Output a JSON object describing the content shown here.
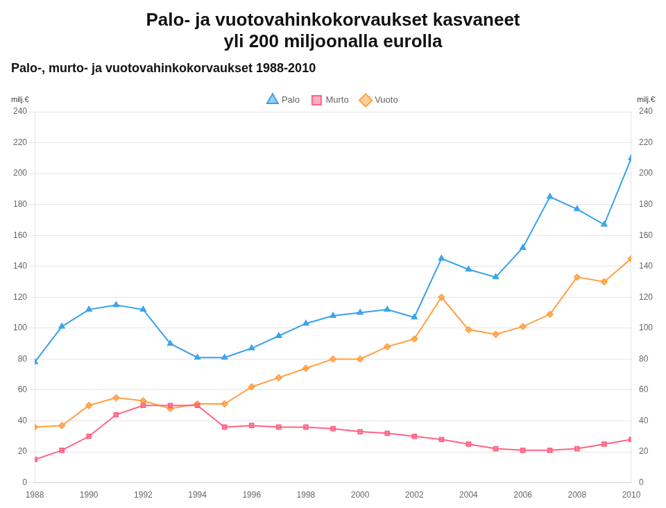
{
  "chart_data": {
    "type": "line",
    "title": [
      "Palo- ja vuotovahinkokorvaukset kasvaneet",
      "yli 200 miljoonalla eurolla"
    ],
    "subtitle": "Palo-, murto- ja vuotovahinkokorvaukset 1988-2010",
    "ylabel": "milj.€",
    "y2label": "milj.€",
    "x": [
      1988,
      1989,
      1990,
      1991,
      1992,
      1993,
      1994,
      1995,
      1996,
      1997,
      1998,
      1999,
      2000,
      2001,
      2002,
      2003,
      2004,
      2005,
      2006,
      2007,
      2008,
      2009,
      2010
    ],
    "series": [
      {
        "name": "Palo",
        "marker": "triangle",
        "values": [
          78,
          101,
          112,
          115,
          112,
          90,
          81,
          81,
          87,
          95,
          103,
          108,
          110,
          112,
          107,
          145,
          138,
          133,
          152,
          185,
          177,
          167,
          210
        ]
      },
      {
        "name": "Murto",
        "marker": "square",
        "values": [
          15,
          21,
          30,
          44,
          50,
          50,
          50,
          36,
          37,
          36,
          36,
          35,
          33,
          32,
          30,
          28,
          25,
          22,
          21,
          21,
          22,
          25,
          28
        ]
      },
      {
        "name": "Vuoto",
        "marker": "diamond",
        "values": [
          36,
          37,
          50,
          55,
          53,
          48,
          51,
          51,
          62,
          68,
          74,
          80,
          80,
          88,
          93,
          120,
          99,
          96,
          101,
          109,
          133,
          130,
          145
        ]
      }
    ],
    "xlim": [
      1988,
      2010
    ],
    "xticks": [
      1988,
      1990,
      1992,
      1994,
      1996,
      1998,
      2000,
      2002,
      2004,
      2006,
      2008,
      2010
    ],
    "ylim": [
      0,
      240
    ],
    "yticks": [
      0,
      20,
      40,
      60,
      80,
      100,
      120,
      140,
      160,
      180,
      200,
      220,
      240
    ],
    "y2lim": [
      0,
      240
    ],
    "y2ticks": [
      0,
      20,
      40,
      60,
      80,
      100,
      120,
      140,
      160,
      180,
      200,
      220,
      240
    ],
    "grid": "y",
    "legend": "top"
  }
}
